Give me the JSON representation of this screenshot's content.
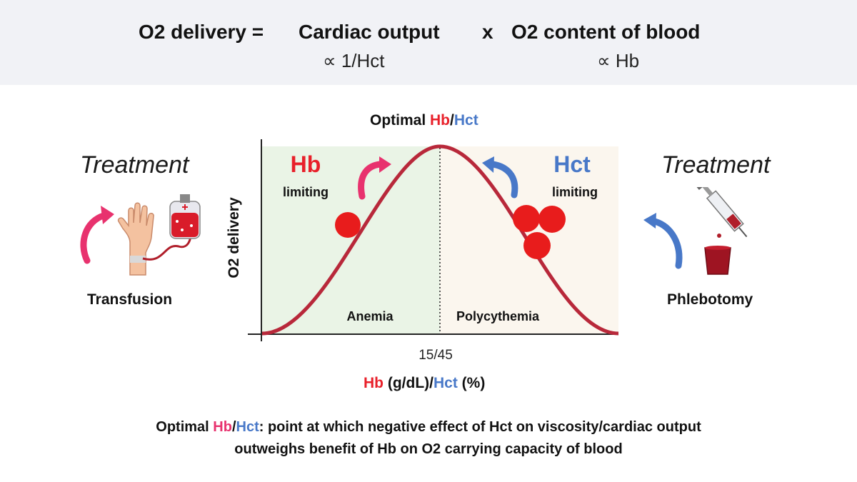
{
  "header": {
    "lhs": "O2 delivery =",
    "term1": "Cardiac output",
    "times": "x",
    "term2": "O2 content of blood",
    "prop1_symbol": "∝",
    "prop1": "1/Hct",
    "prop2_symbol": "∝",
    "prop2": "Hb"
  },
  "graph": {
    "title_prefix": "Optimal ",
    "title_hb": "Hb",
    "title_sep": "/",
    "title_hct": "Hct",
    "ylabel": "O2 delivery",
    "xtick": "15/45",
    "xlabel_hb": "Hb",
    "xlabel_mid": " (g/dL)/",
    "xlabel_hct": "Hct",
    "xlabel_end": " (%)",
    "left_region": "Anemia",
    "right_region": "Polycythemia",
    "left_big": "Hb",
    "left_small": "limiting",
    "right_big": "Hct",
    "right_small": "limiting"
  },
  "left_treatment": {
    "heading": "Treatment",
    "procedure": "Transfusion",
    "icon": "transfusion-icon"
  },
  "right_treatment": {
    "heading": "Treatment",
    "procedure": "Phlebotomy",
    "icon": "syringe-cup-icon"
  },
  "footer": {
    "prefix": "Optimal ",
    "hb": "Hb",
    "sep": "/",
    "hct": "Hct",
    "line1_rest": ": point at which negative effect of Hct on viscosity/cardiac output",
    "line2": "outweighs benefit of Hb on O2 carrying capacity of blood"
  },
  "colors": {
    "red": "#e8202a",
    "blue": "#4878c8",
    "pink": "#e8326e",
    "curve": "#b8283a",
    "left_bg": "#eaf4e6",
    "right_bg": "#fbf6ee"
  }
}
